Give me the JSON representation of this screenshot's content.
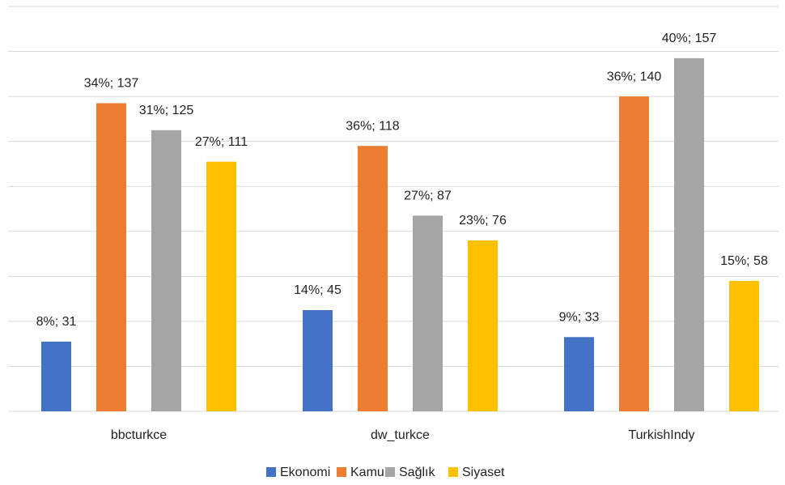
{
  "chart_data": {
    "type": "bar",
    "categories": [
      "bbcturkce",
      "dw_turkce",
      "TurkishIndy"
    ],
    "series": [
      {
        "name": "Ekonomi",
        "color": "#4472c4",
        "values": [
          31,
          45,
          33
        ],
        "value_labels": [
          "8%; 31",
          "14%; 45",
          "9%; 33"
        ]
      },
      {
        "name": "Kamu",
        "color": "#ed7d31",
        "values": [
          137,
          118,
          140
        ],
        "value_labels": [
          "34%; 137",
          "36%; 118",
          "36%; 140"
        ]
      },
      {
        "name": "Sağlık",
        "color": "#a5a5a5",
        "values": [
          125,
          87,
          157
        ],
        "value_labels": [
          "31%; 125",
          "27%; 87",
          "40%; 157"
        ]
      },
      {
        "name": "Siyaset",
        "color": "#ffc000",
        "values": [
          111,
          76,
          58
        ],
        "value_labels": [
          "27%; 111",
          "23%; 76",
          "15%; 58"
        ]
      }
    ],
    "ylim": [
      0,
      180
    ],
    "yticks": [
      0,
      20,
      40,
      60,
      80,
      100,
      120,
      140,
      160,
      180
    ],
    "grid": true,
    "legend": "bottom"
  }
}
